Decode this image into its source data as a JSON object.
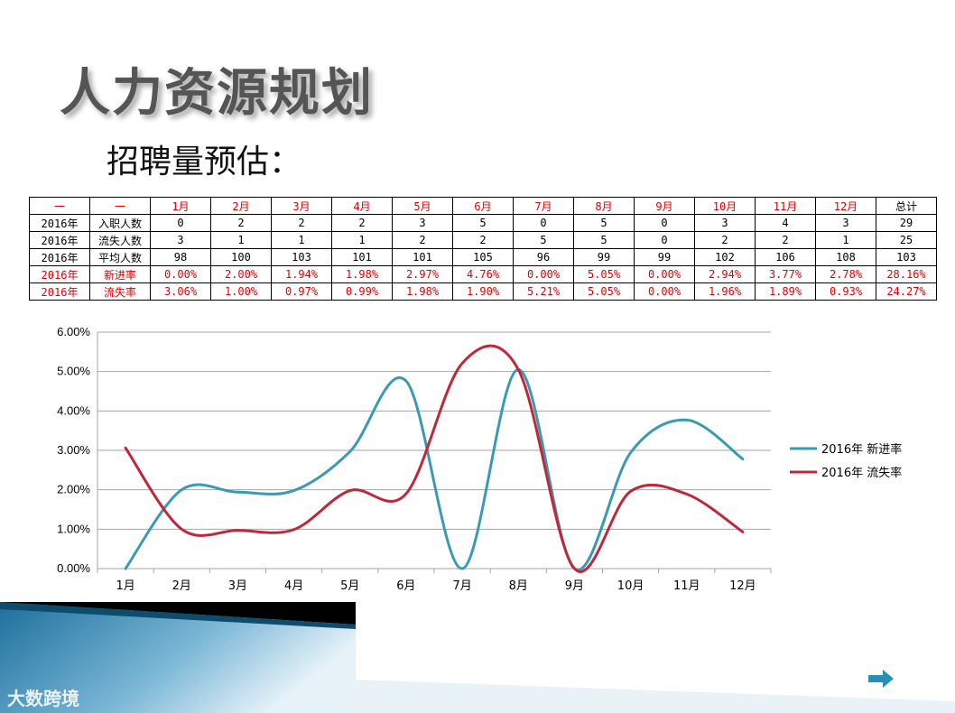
{
  "title": "人力资源规划",
  "subtitle": "招聘量预估：",
  "table": {
    "header": [
      "一",
      "一",
      "1月",
      "2月",
      "3月",
      "4月",
      "5月",
      "6月",
      "7月",
      "8月",
      "9月",
      "10月",
      "11月",
      "12月",
      "总计"
    ],
    "rows": [
      {
        "year": "2016年",
        "label": "入职人数",
        "values": [
          "0",
          "2",
          "2",
          "2",
          "3",
          "5",
          "0",
          "5",
          "0",
          "3",
          "4",
          "3"
        ],
        "total": "29",
        "highlight": false
      },
      {
        "year": "2016年",
        "label": "流失人数",
        "values": [
          "3",
          "1",
          "1",
          "1",
          "2",
          "2",
          "5",
          "5",
          "0",
          "2",
          "2",
          "1"
        ],
        "total": "25",
        "highlight": false
      },
      {
        "year": "2016年",
        "label": "平均人数",
        "values": [
          "98",
          "100",
          "103",
          "101",
          "101",
          "105",
          "96",
          "99",
          "99",
          "102",
          "106",
          "108"
        ],
        "total": "103",
        "highlight": false
      },
      {
        "year": "2016年",
        "label": "新进率",
        "values": [
          "0.00%",
          "2.00%",
          "1.94%",
          "1.98%",
          "2.97%",
          "4.76%",
          "0.00%",
          "5.05%",
          "0.00%",
          "2.94%",
          "3.77%",
          "2.78%"
        ],
        "total": "28.16%",
        "highlight": true
      },
      {
        "year": "2016年",
        "label": "流失率",
        "values": [
          "3.06%",
          "1.00%",
          "0.97%",
          "0.99%",
          "1.98%",
          "1.90%",
          "5.21%",
          "5.05%",
          "0.00%",
          "1.96%",
          "1.89%",
          "0.93%"
        ],
        "total": "24.27%",
        "highlight": true
      }
    ]
  },
  "chart_data": {
    "type": "line",
    "categories": [
      "1月",
      "2月",
      "3月",
      "4月",
      "5月",
      "6月",
      "7月",
      "8月",
      "9月",
      "10月",
      "11月",
      "12月"
    ],
    "series": [
      {
        "name": "2016年 新进率",
        "color": "#3a9ab3",
        "values": [
          0.0,
          2.0,
          1.94,
          1.98,
          2.97,
          4.76,
          0.0,
          5.05,
          0.0,
          2.94,
          3.77,
          2.78
        ]
      },
      {
        "name": "2016年 流失率",
        "color": "#c0283a",
        "values": [
          3.06,
          1.0,
          0.97,
          0.99,
          1.98,
          1.9,
          5.21,
          5.05,
          0.0,
          1.96,
          1.89,
          0.93
        ]
      }
    ],
    "ylim": [
      0,
      6
    ],
    "yticks": [
      "0.00%",
      "1.00%",
      "2.00%",
      "3.00%",
      "4.00%",
      "5.00%",
      "6.00%"
    ],
    "grid": true,
    "smooth": true,
    "legend": "right"
  },
  "footer": {
    "logo_text": "大数跨境",
    "next_icon": "arrow-right-icon"
  }
}
